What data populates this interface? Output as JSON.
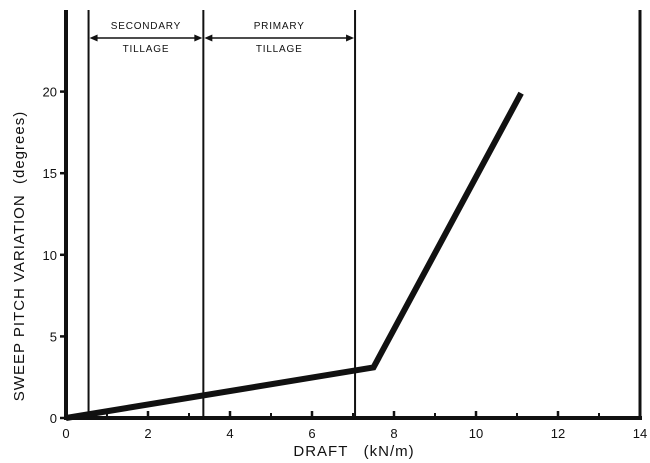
{
  "chart_data": {
    "type": "line",
    "xlabel": "DRAFT   (kN/m)",
    "ylabel": "SWEEP PITCH VARIATION  (degrees)",
    "xlim": [
      0,
      14
    ],
    "ylim": [
      0,
      25
    ],
    "x_ticks": [
      0,
      2,
      4,
      6,
      8,
      10,
      12,
      14
    ],
    "y_ticks": [
      0,
      5,
      10,
      15,
      20
    ],
    "grid": false,
    "series": [
      {
        "x": [
          0,
          7.5,
          11.1
        ],
        "y": [
          0,
          3.1,
          19.9
        ]
      }
    ],
    "regions": [
      {
        "label_line1": "SECONDARY",
        "label_line2": "TILLAGE",
        "x_start": 0.55,
        "x_end": 3.35
      },
      {
        "label_line1": "PRIMARY",
        "label_line2": "TILLAGE",
        "x_start": 3.35,
        "x_end": 7.05
      }
    ],
    "colors": {
      "line": "#111111",
      "axis": "#111111"
    }
  }
}
